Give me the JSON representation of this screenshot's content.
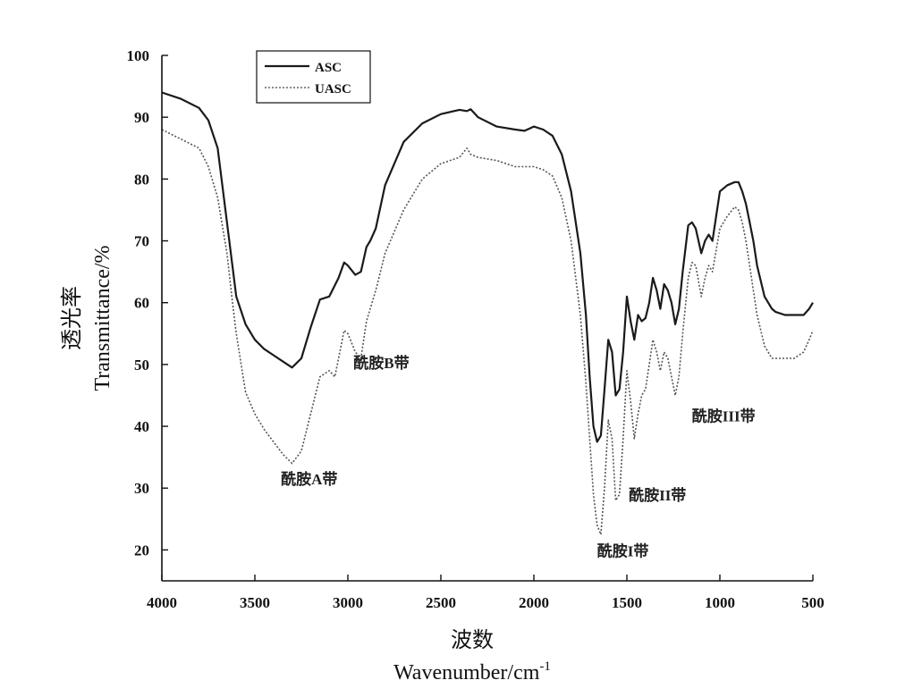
{
  "chart_data": {
    "type": "line",
    "xlabel_cn": "波数",
    "xlabel": "Wavenumber/cm",
    "xlabel_sup": "-1",
    "ylabel_cn": "透光率",
    "ylabel": "Transmittance/%",
    "xlim": [
      4000,
      500
    ],
    "ylim": [
      15,
      100
    ],
    "x_ticks": [
      "4000",
      "3500",
      "3000",
      "2500",
      "2000",
      "1500",
      "1000",
      "500"
    ],
    "y_ticks": [
      "100",
      "90",
      "80",
      "70",
      "60",
      "50",
      "40",
      "30",
      "20"
    ],
    "legend": {
      "placement": "top-left"
    },
    "series": [
      {
        "name": "ASC",
        "style": "solid",
        "color": "#1a1a1a",
        "x": [
          4000,
          3900,
          3800,
          3750,
          3700,
          3650,
          3600,
          3550,
          3500,
          3450,
          3400,
          3350,
          3300,
          3250,
          3200,
          3150,
          3100,
          3050,
          3020,
          3000,
          2960,
          2930,
          2900,
          2880,
          2850,
          2800,
          2700,
          2600,
          2500,
          2400,
          2360,
          2340,
          2300,
          2200,
          2100,
          2050,
          2000,
          1950,
          1900,
          1850,
          1800,
          1750,
          1720,
          1700,
          1680,
          1660,
          1640,
          1620,
          1600,
          1580,
          1560,
          1540,
          1520,
          1500,
          1480,
          1460,
          1440,
          1420,
          1400,
          1380,
          1360,
          1340,
          1320,
          1300,
          1280,
          1260,
          1240,
          1220,
          1200,
          1170,
          1150,
          1130,
          1100,
          1080,
          1060,
          1040,
          1000,
          960,
          920,
          900,
          880,
          860,
          840,
          820,
          800,
          760,
          720,
          700,
          650,
          600,
          550,
          520,
          500
        ],
        "y": [
          94,
          93,
          91.5,
          89.5,
          85,
          73,
          61,
          56.5,
          54,
          52.5,
          51.5,
          50.5,
          49.5,
          51,
          56,
          60.5,
          61,
          64,
          66.5,
          66,
          64.5,
          65,
          69,
          70,
          72,
          79,
          86,
          89,
          90.5,
          91.2,
          91,
          91.3,
          90,
          88.5,
          88,
          87.8,
          88.5,
          88,
          87,
          84,
          78,
          68,
          58,
          48,
          40,
          37.5,
          38.5,
          46,
          54,
          52,
          45,
          46,
          52,
          61,
          57,
          54,
          58,
          57,
          57.5,
          60,
          64,
          62,
          59,
          63,
          62,
          60,
          56.5,
          59,
          65,
          72.5,
          73,
          72,
          68,
          70,
          71,
          70,
          78,
          79,
          79.5,
          79.5,
          78,
          76,
          73,
          70,
          66,
          61,
          59,
          58.5,
          58,
          58,
          58,
          59,
          60
        ]
      },
      {
        "name": "UASC",
        "style": "dotted",
        "color": "#555555",
        "x": [
          4000,
          3900,
          3800,
          3750,
          3700,
          3650,
          3620,
          3600,
          3550,
          3500,
          3450,
          3400,
          3350,
          3300,
          3250,
          3200,
          3150,
          3100,
          3070,
          3050,
          3020,
          3000,
          2960,
          2930,
          2900,
          2850,
          2800,
          2700,
          2600,
          2500,
          2400,
          2360,
          2340,
          2300,
          2200,
          2100,
          2000,
          1950,
          1900,
          1850,
          1800,
          1750,
          1720,
          1700,
          1680,
          1660,
          1640,
          1620,
          1600,
          1580,
          1560,
          1540,
          1520,
          1500,
          1480,
          1460,
          1440,
          1420,
          1400,
          1380,
          1360,
          1340,
          1320,
          1300,
          1280,
          1260,
          1240,
          1220,
          1200,
          1170,
          1150,
          1130,
          1100,
          1080,
          1060,
          1040,
          1000,
          960,
          920,
          900,
          880,
          860,
          840,
          820,
          800,
          760,
          720,
          700,
          650,
          600,
          550,
          520,
          500
        ],
        "y": [
          88,
          86.5,
          85,
          82,
          77,
          68,
          60,
          55,
          45.5,
          42,
          39.5,
          37.5,
          35.5,
          34,
          36,
          42,
          48,
          49,
          48,
          51,
          55.5,
          55,
          52,
          51,
          57,
          62,
          68,
          75,
          80,
          82.5,
          83.5,
          85,
          84,
          83.5,
          83,
          82,
          82,
          81.5,
          80.5,
          77,
          70,
          58,
          47,
          38,
          29,
          24,
          22.5,
          30,
          41,
          38,
          28,
          29,
          38,
          49,
          44,
          38,
          42,
          45,
          46,
          50,
          54,
          52,
          49,
          52,
          51,
          48,
          45,
          48,
          55,
          64,
          66.5,
          66,
          61,
          64,
          66,
          65,
          72,
          74,
          75.5,
          75,
          73,
          70,
          66,
          62,
          58,
          53,
          51,
          51,
          51,
          51,
          52,
          54,
          55.5
        ]
      }
    ],
    "annotations": [
      {
        "text": "酰胺A带",
        "x": 3360,
        "y": 30.6
      },
      {
        "text": "酰胺B带",
        "x": 2970,
        "y": 49.4
      },
      {
        "text": "酰胺I带",
        "x": 1660,
        "y": 19.0
      },
      {
        "text": "酰胺II带",
        "x": 1490,
        "y": 28.0
      },
      {
        "text": "酰胺III带",
        "x": 1150,
        "y": 40.8
      }
    ]
  }
}
